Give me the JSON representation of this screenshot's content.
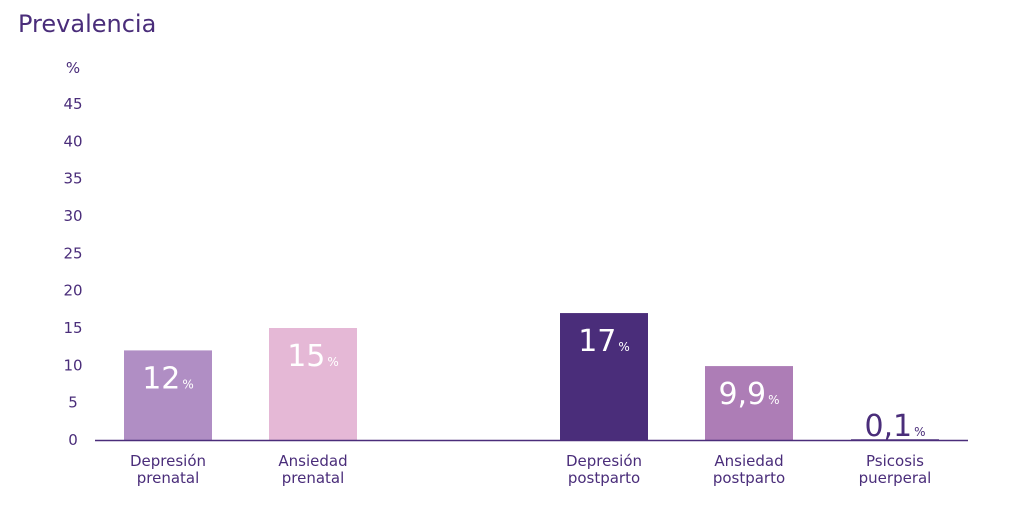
{
  "chart_data": {
    "type": "bar",
    "title": "Prevalencia",
    "ylabel": "%",
    "ylim": [
      0,
      45
    ],
    "yticks": [
      0,
      5,
      10,
      15,
      20,
      25,
      30,
      35,
      40,
      45
    ],
    "grid": false,
    "categories": [
      [
        "Depresión",
        "prenatal"
      ],
      [
        "Ansiedad",
        "prenatal"
      ],
      [
        "Depresión",
        "postparto"
      ],
      [
        "Ansiedad",
        "postparto"
      ],
      [
        "Psicosis",
        "puerperal"
      ]
    ],
    "values": [
      12,
      15,
      17,
      9.9,
      0.1
    ],
    "value_labels": [
      "12",
      "15",
      "17",
      "9,9",
      "0,1"
    ],
    "value_unit": "%",
    "colors": [
      "#b08ec4",
      "#e5b8d6",
      "#4a2d7a",
      "#ad7db6",
      "#4a2d7a"
    ],
    "label_colors": [
      "#ffffff",
      "#ffffff",
      "#ffffff",
      "#ffffff",
      "#4a2d7a"
    ]
  },
  "axis_color": "#4a2d7a"
}
